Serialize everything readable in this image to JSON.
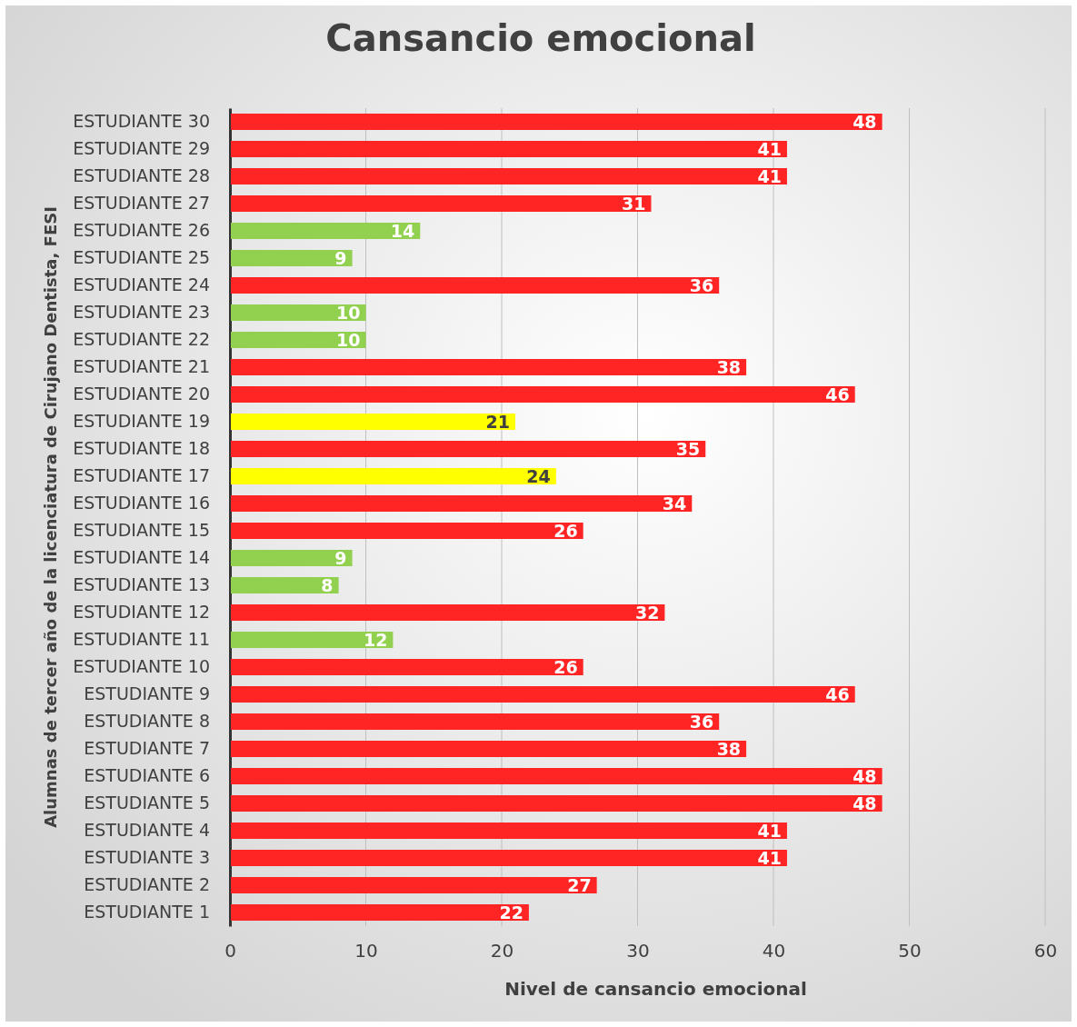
{
  "chart_data": {
    "type": "bar",
    "orientation": "horizontal",
    "title": "Cansancio emocional",
    "xlabel": "Nivel de cansancio emocional",
    "ylabel": "Alumnas de tercer año de la licenciatura de Cirujano Dentista, FESI",
    "categories": [
      "ESTUDIANTE 30",
      "ESTUDIANTE 29",
      "ESTUDIANTE 28",
      "ESTUDIANTE 27",
      "ESTUDIANTE 26",
      "ESTUDIANTE 25",
      "ESTUDIANTE 24",
      "ESTUDIANTE 23",
      "ESTUDIANTE 22",
      "ESTUDIANTE 21",
      "ESTUDIANTE 20",
      "ESTUDIANTE 19",
      "ESTUDIANTE 18",
      "ESTUDIANTE 17",
      "ESTUDIANTE 16",
      "ESTUDIANTE 15",
      "ESTUDIANTE 14",
      "ESTUDIANTE 13",
      "ESTUDIANTE 12",
      "ESTUDIANTE 11",
      "ESTUDIANTE 10",
      "ESTUDIANTE 9",
      "ESTUDIANTE 8",
      "ESTUDIANTE 7",
      "ESTUDIANTE 6",
      "ESTUDIANTE 5",
      "ESTUDIANTE 4",
      "ESTUDIANTE 3",
      "ESTUDIANTE 2",
      "ESTUDIANTE 1"
    ],
    "values": [
      48,
      41,
      41,
      31,
      14,
      9,
      36,
      10,
      10,
      38,
      46,
      21,
      35,
      24,
      34,
      26,
      9,
      8,
      32,
      12,
      26,
      46,
      36,
      38,
      48,
      48,
      41,
      41,
      27,
      22
    ],
    "colors": [
      "#ff2525",
      "#ff2525",
      "#ff2525",
      "#ff2525",
      "#92d050",
      "#92d050",
      "#ff2525",
      "#92d050",
      "#92d050",
      "#ff2525",
      "#ff2525",
      "#ffff00",
      "#ff2525",
      "#ffff00",
      "#ff2525",
      "#ff2525",
      "#92d050",
      "#92d050",
      "#ff2525",
      "#92d050",
      "#ff2525",
      "#ff2525",
      "#ff2525",
      "#ff2525",
      "#ff2525",
      "#ff2525",
      "#ff2525",
      "#ff2525",
      "#ff2525",
      "#ff2525"
    ],
    "xlim": [
      0,
      60
    ],
    "xticks": [
      0,
      10,
      20,
      30,
      40,
      50,
      60
    ],
    "grid": "x",
    "data_labels": true
  }
}
